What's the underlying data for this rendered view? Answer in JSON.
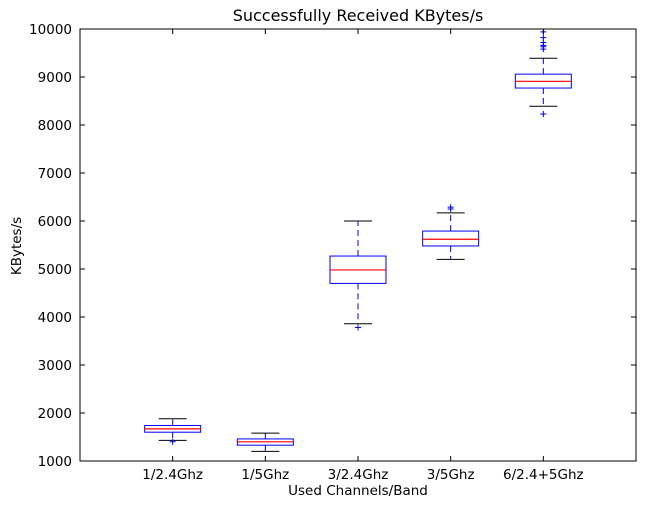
{
  "chart_data": {
    "type": "box",
    "title": "Successfully Received KBytes/s",
    "xlabel": "Used Channels/Band",
    "ylabel": "KBytes/s",
    "ylim": [
      1000,
      10000
    ],
    "yticks": [
      1000,
      2000,
      3000,
      4000,
      5000,
      6000,
      7000,
      8000,
      9000,
      10000
    ],
    "categories": [
      "1/2.4Ghz",
      "1/5Ghz",
      "3/2.4Ghz",
      "3/5Ghz",
      "6/2.4+5Ghz"
    ],
    "boxes": [
      {
        "category": "1/2.4Ghz",
        "whisker_low": 1430,
        "q1": 1600,
        "median": 1670,
        "q3": 1740,
        "whisker_high": 1880,
        "outliers": [
          1400
        ]
      },
      {
        "category": "1/5Ghz",
        "whisker_low": 1200,
        "q1": 1330,
        "median": 1400,
        "q3": 1460,
        "whisker_high": 1580,
        "outliers": []
      },
      {
        "category": "3/2.4Ghz",
        "whisker_low": 3860,
        "q1": 4700,
        "median": 4980,
        "q3": 5270,
        "whisker_high": 6000,
        "outliers": [
          3780
        ]
      },
      {
        "category": "3/5Ghz",
        "whisker_low": 5200,
        "q1": 5480,
        "median": 5620,
        "q3": 5790,
        "whisker_high": 6170,
        "outliers": [
          6250,
          6290
        ]
      },
      {
        "category": "6/2.4+5Ghz",
        "whisker_low": 8390,
        "q1": 8770,
        "median": 8910,
        "q3": 9060,
        "whisker_high": 9390,
        "outliers": [
          8230,
          9580,
          9630,
          9660,
          9720,
          9820,
          9940
        ]
      }
    ],
    "grid": false,
    "colors": {
      "box": "#0000ff",
      "median": "#ff0000",
      "cap": "#000000",
      "axes": "#000000"
    }
  }
}
